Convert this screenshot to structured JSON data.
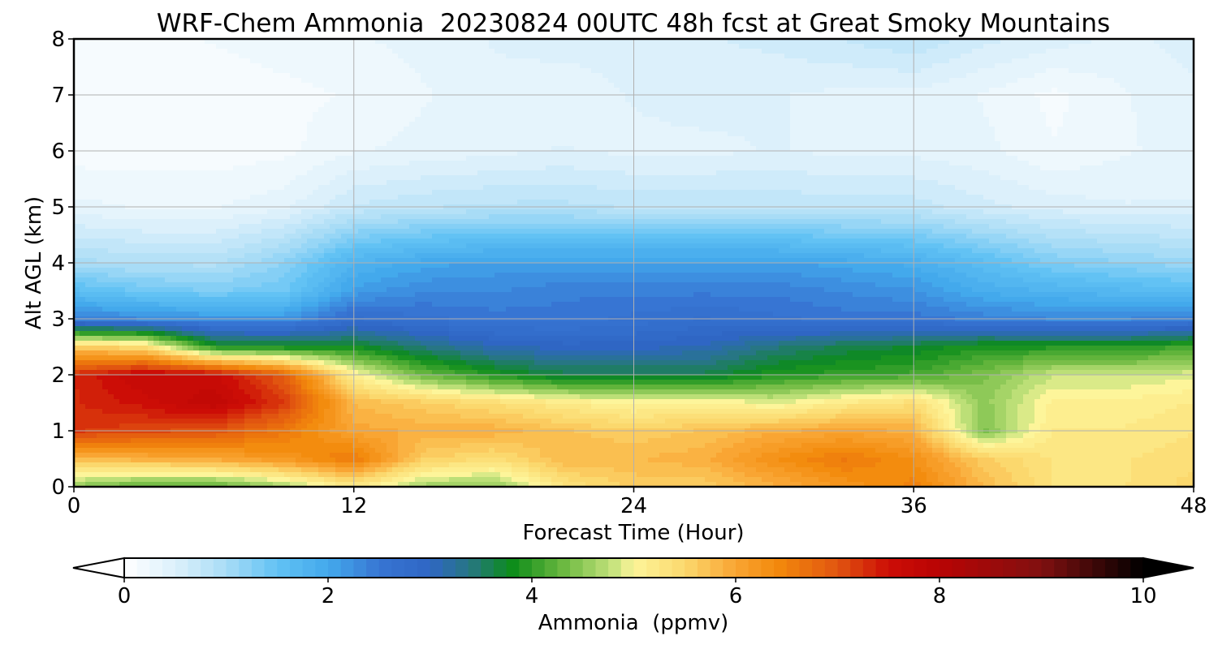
{
  "chart_data": {
    "type": "heatmap",
    "title": "WRF-Chem Ammonia  20230824 00UTC 48h fcst at Great Smoky Mountains",
    "xlabel": "Forecast Time (Hour)",
    "ylabel": "Alt AGL (km)",
    "xlim": [
      0,
      48
    ],
    "ylim": [
      0,
      8
    ],
    "x_ticks": [
      0,
      12,
      24,
      36,
      48
    ],
    "y_ticks": [
      0,
      1,
      2,
      3,
      4,
      5,
      6,
      7,
      8
    ],
    "grid": true,
    "x_hours": [
      0,
      3,
      6,
      9,
      12,
      15,
      18,
      21,
      24,
      27,
      30,
      33,
      36,
      39,
      42,
      45,
      48
    ],
    "y_km": [
      0,
      0.5,
      1,
      1.5,
      2,
      2.5,
      3,
      3.5,
      4,
      5,
      6,
      7,
      8
    ],
    "z_ppmv": [
      [
        4.5,
        4.2,
        4.2,
        4.6,
        5.2,
        4.6,
        4.5,
        5.3,
        5.6,
        5.6,
        5.9,
        6.2,
        6.5,
        5.8,
        5.3,
        5.3,
        5.5
      ],
      [
        5.8,
        5.9,
        6.0,
        6.2,
        6.6,
        5.6,
        5.4,
        5.8,
        5.8,
        5.9,
        6.3,
        6.6,
        6.3,
        5.6,
        5.3,
        5.3,
        5.4
      ],
      [
        7.2,
        7.1,
        7.0,
        6.6,
        6.0,
        5.9,
        5.9,
        5.7,
        5.6,
        5.7,
        5.9,
        6.0,
        5.9,
        4.4,
        5.2,
        5.2,
        5.3
      ],
      [
        7.3,
        7.5,
        7.8,
        7.2,
        5.8,
        5.6,
        5.4,
        5.2,
        5.0,
        5.1,
        4.9,
        5.2,
        5.4,
        4.5,
        5.1,
        5.1,
        5.2
      ],
      [
        7.3,
        7.7,
        7.6,
        6.9,
        5.1,
        4.3,
        3.9,
        3.6,
        3.6,
        3.6,
        3.9,
        4.0,
        4.1,
        4.4,
        4.8,
        4.8,
        4.9
      ],
      [
        5.6,
        5.4,
        3.9,
        3.8,
        3.8,
        3.4,
        3.1,
        3.0,
        3.0,
        3.1,
        3.4,
        3.6,
        3.7,
        3.9,
        3.9,
        3.9,
        4.1
      ],
      [
        2.4,
        2.3,
        2.2,
        2.2,
        2.7,
        2.6,
        2.5,
        2.5,
        2.6,
        2.7,
        2.6,
        2.5,
        2.5,
        2.4,
        2.3,
        2.3,
        2.4
      ],
      [
        1.6,
        1.4,
        1.3,
        1.4,
        2.1,
        2.3,
        2.3,
        2.4,
        2.4,
        2.4,
        2.4,
        2.3,
        2.2,
        1.9,
        1.8,
        1.7,
        1.6
      ],
      [
        1.0,
        0.9,
        0.9,
        1.2,
        1.8,
        2.0,
        2.1,
        2.1,
        2.1,
        2.1,
        2.1,
        2.0,
        1.9,
        1.6,
        1.3,
        1.2,
        1.1
      ],
      [
        0.35,
        0.3,
        0.3,
        0.4,
        0.7,
        0.8,
        0.85,
        0.85,
        0.8,
        0.8,
        0.8,
        0.75,
        0.75,
        0.6,
        0.5,
        0.45,
        0.45
      ],
      [
        0.12,
        0.12,
        0.12,
        0.15,
        0.3,
        0.35,
        0.4,
        0.45,
        0.4,
        0.4,
        0.45,
        0.4,
        0.4,
        0.35,
        0.2,
        0.3,
        0.35
      ],
      [
        0.1,
        0.1,
        0.1,
        0.15,
        0.2,
        0.3,
        0.4,
        0.35,
        0.45,
        0.5,
        0.45,
        0.4,
        0.4,
        0.3,
        0.15,
        0.3,
        0.4
      ],
      [
        0.1,
        0.15,
        0.2,
        0.25,
        0.3,
        0.35,
        0.45,
        0.5,
        0.5,
        0.55,
        0.6,
        0.7,
        0.8,
        0.6,
        0.5,
        0.4,
        0.5
      ]
    ],
    "colorbar": {
      "label": "Ammonia  (ppmv)",
      "min": 0,
      "max": 10,
      "ticks": [
        0,
        2,
        4,
        6,
        8,
        10
      ],
      "extend": "both",
      "stops": [
        {
          "v": 0.0,
          "c": "#ffffff"
        },
        {
          "v": 0.5,
          "c": "#dcf0fb"
        },
        {
          "v": 1.0,
          "c": "#a8dcf6"
        },
        {
          "v": 1.5,
          "c": "#62c2f4"
        },
        {
          "v": 2.0,
          "c": "#43a9ec"
        },
        {
          "v": 2.5,
          "c": "#3775d3"
        },
        {
          "v": 3.0,
          "c": "#2f66c4"
        },
        {
          "v": 3.4,
          "c": "#267780"
        },
        {
          "v": 3.8,
          "c": "#0c8c1a"
        },
        {
          "v": 4.3,
          "c": "#6ab83f"
        },
        {
          "v": 4.8,
          "c": "#c5e37d"
        },
        {
          "v": 5.0,
          "c": "#fdf59a"
        },
        {
          "v": 5.5,
          "c": "#fbd86d"
        },
        {
          "v": 6.0,
          "c": "#f9a533"
        },
        {
          "v": 6.4,
          "c": "#f38a0c"
        },
        {
          "v": 7.0,
          "c": "#e15510"
        },
        {
          "v": 7.5,
          "c": "#cc0d06"
        },
        {
          "v": 8.0,
          "c": "#b80404"
        },
        {
          "v": 9.0,
          "c": "#801010"
        },
        {
          "v": 10.0,
          "c": "#000000"
        }
      ],
      "under_color": "#ffffff",
      "over_color": "#000000"
    }
  }
}
